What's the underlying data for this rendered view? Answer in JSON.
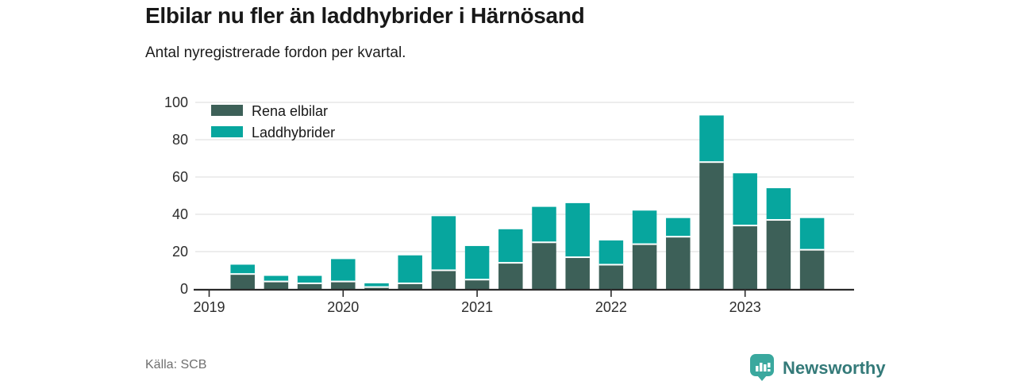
{
  "header": {
    "title": "Elbilar nu fler än laddhybrider i Härnösand",
    "subtitle": "Antal nyregistrerade fordon per kvartal."
  },
  "source": {
    "label": "Källa: SCB"
  },
  "brand": {
    "wordmark": "Newsworthy",
    "logo_color": "#3aa89e",
    "wordmark_color": "#347a79"
  },
  "chart_data": {
    "type": "bar",
    "stacked": true,
    "title": "Elbilar nu fler än laddhybrider i Härnösand",
    "subtitle": "Antal nyregistrerade fordon per kvartal.",
    "categories": [
      "2019 Q2",
      "2019 Q3",
      "2019 Q4",
      "2020 Q1",
      "2020 Q2",
      "2020 Q3",
      "2020 Q4",
      "2021 Q1",
      "2021 Q2",
      "2021 Q3",
      "2021 Q4",
      "2022 Q1",
      "2022 Q2",
      "2022 Q3",
      "2022 Q4",
      "2023 Q1",
      "2023 Q2",
      "2023 Q3"
    ],
    "series": [
      {
        "name": "Rena elbilar",
        "color": "#3d6058",
        "values": [
          8,
          4,
          3,
          4,
          1,
          3,
          10,
          5,
          14,
          25,
          17,
          13,
          24,
          28,
          68,
          34,
          37,
          21
        ]
      },
      {
        "name": "Laddhybrider",
        "color": "#07a69e",
        "values": [
          5,
          3,
          4,
          12,
          2,
          15,
          29,
          18,
          18,
          19,
          29,
          13,
          18,
          10,
          25,
          28,
          17,
          17
        ]
      }
    ],
    "x_tick_labels": [
      "2019",
      "2020",
      "2021",
      "2022",
      "2023"
    ],
    "y_ticks": [
      0,
      20,
      40,
      60,
      80,
      100
    ],
    "ylim": [
      0,
      100
    ],
    "legend_position": "top-left",
    "grid": "horizontal",
    "grid_color": "#e2e2e2",
    "axis_color": "#2b2b2b"
  }
}
